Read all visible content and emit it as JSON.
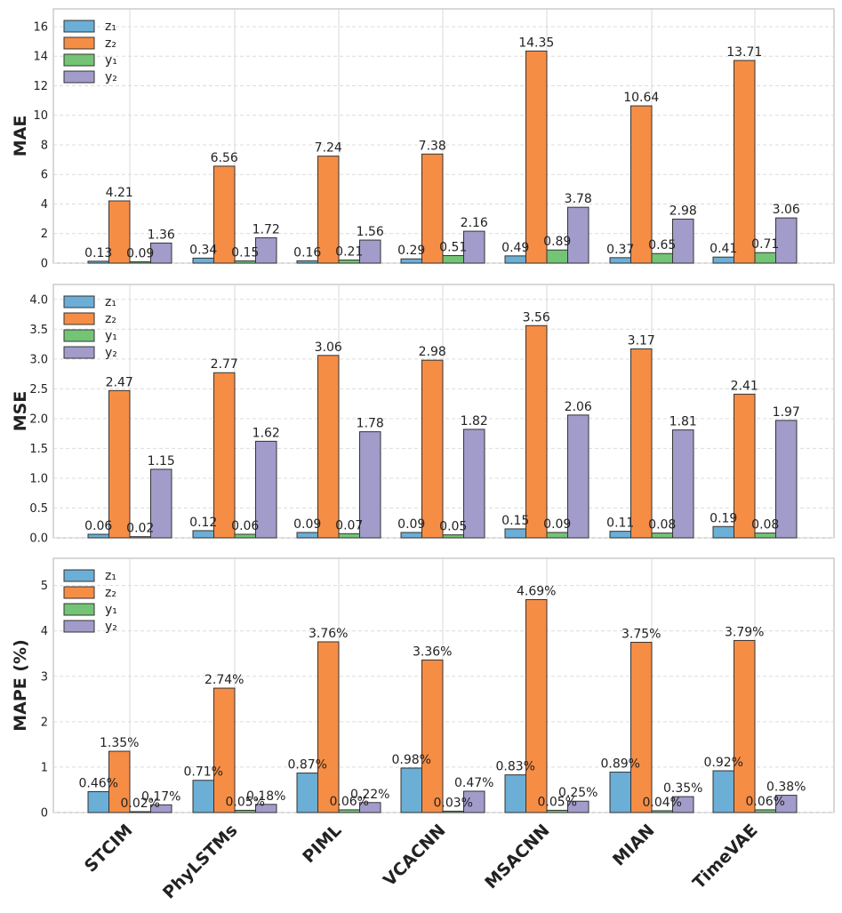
{
  "chart_data": {
    "type": "bar",
    "categories": [
      "STCIM",
      "PhyLSTMs",
      "PIML",
      "VCACNN",
      "MSACNN",
      "MIAN",
      "TimeVAE"
    ],
    "series_colors": [
      "#6baed6",
      "#f68d45",
      "#74c476",
      "#a29ccb"
    ],
    "panels": [
      {
        "ylabel": "MAE",
        "ylim": [
          0,
          17.2
        ],
        "yticks": [
          "0",
          "2",
          "4",
          "6",
          "8",
          "10",
          "12",
          "14",
          "16"
        ],
        "ytick_values": [
          0,
          2,
          4,
          6,
          8,
          10,
          12,
          14,
          16
        ],
        "legend": [
          "z₁",
          "z₂",
          "y₁",
          "y₂"
        ],
        "series": [
          {
            "name": "z₁",
            "values": [
              0.13,
              0.34,
              0.16,
              0.29,
              0.49,
              0.37,
              0.41
            ],
            "labels": [
              "0.13",
              "0.34",
              "0.16",
              "0.29",
              "0.49",
              "0.37",
              "0.41"
            ]
          },
          {
            "name": "z₂",
            "values": [
              4.21,
              6.56,
              7.24,
              7.38,
              14.35,
              10.64,
              13.71
            ],
            "labels": [
              "4.21",
              "6.56",
              "7.24",
              "7.38",
              "14.35",
              "10.64",
              "13.71"
            ]
          },
          {
            "name": "y₁",
            "values": [
              0.09,
              0.15,
              0.21,
              0.51,
              0.89,
              0.65,
              0.71
            ],
            "labels": [
              "0.09",
              "0.15",
              "0.21",
              "0.51",
              "0.89",
              "0.65",
              "0.71"
            ]
          },
          {
            "name": "y₂",
            "values": [
              1.36,
              1.72,
              1.56,
              2.16,
              3.78,
              2.98,
              3.06
            ],
            "labels": [
              "1.36",
              "1.72",
              "1.56",
              "2.16",
              "3.78",
              "2.98",
              "3.06"
            ]
          }
        ]
      },
      {
        "ylabel": "MSE",
        "ylim": [
          0,
          4.25
        ],
        "yticks": [
          "0.0",
          "0.5",
          "1.0",
          "1.5",
          "2.0",
          "2.5",
          "3.0",
          "3.5",
          "4.0"
        ],
        "ytick_values": [
          0,
          0.5,
          1,
          1.5,
          2,
          2.5,
          3,
          3.5,
          4
        ],
        "legend": [
          "z₁",
          "z₂",
          "y₁",
          "y₂"
        ],
        "series": [
          {
            "name": "z₁",
            "values": [
              0.06,
              0.12,
              0.09,
              0.09,
              0.15,
              0.11,
              0.19
            ],
            "labels": [
              "0.06",
              "0.12",
              "0.09",
              "0.09",
              "0.15",
              "0.11",
              "0.19"
            ]
          },
          {
            "name": "z₂",
            "values": [
              2.47,
              2.77,
              3.06,
              2.98,
              3.56,
              3.17,
              2.41
            ],
            "labels": [
              "2.47",
              "2.77",
              "3.06",
              "2.98",
              "3.56",
              "3.17",
              "2.41"
            ]
          },
          {
            "name": "y₁",
            "values": [
              0.02,
              0.06,
              0.07,
              0.05,
              0.09,
              0.08,
              0.08
            ],
            "labels": [
              "0.02",
              "0.06",
              "0.07",
              "0.05",
              "0.09",
              "0.08",
              "0.08"
            ]
          },
          {
            "name": "y₂",
            "values": [
              1.15,
              1.62,
              1.78,
              1.82,
              2.06,
              1.81,
              1.97
            ],
            "labels": [
              "1.15",
              "1.62",
              "1.78",
              "1.82",
              "2.06",
              "1.81",
              "1.97"
            ]
          }
        ]
      },
      {
        "ylabel": "MAPE (%)",
        "ylim": [
          0,
          5.6
        ],
        "yticks": [
          "0",
          "1",
          "2",
          "3",
          "4",
          "5"
        ],
        "ytick_values": [
          0,
          1,
          2,
          3,
          4,
          5
        ],
        "legend": [
          "z₁",
          "z₂",
          "y₁",
          "y₂"
        ],
        "series": [
          {
            "name": "z₁",
            "values": [
              0.46,
              0.71,
              0.87,
              0.98,
              0.83,
              0.89,
              0.92
            ],
            "labels": [
              "0.46%",
              "0.71%",
              "0.87%",
              "0.98%",
              "0.83%",
              "0.89%",
              "0.92%"
            ]
          },
          {
            "name": "z₂",
            "values": [
              1.35,
              2.74,
              3.76,
              3.36,
              4.69,
              3.75,
              3.79
            ],
            "labels": [
              "1.35%",
              "2.74%",
              "3.76%",
              "3.36%",
              "4.69%",
              "3.75%",
              "3.79%"
            ]
          },
          {
            "name": "y₁",
            "values": [
              0.02,
              0.05,
              0.06,
              0.03,
              0.05,
              0.04,
              0.06
            ],
            "labels": [
              "0.02%",
              "0.05%",
              "0.06%",
              "0.03%",
              "0.05%",
              "0.04%",
              "0.06%"
            ]
          },
          {
            "name": "y₂",
            "values": [
              0.17,
              0.18,
              0.22,
              0.47,
              0.25,
              0.35,
              0.38
            ],
            "labels": [
              "0.17%",
              "0.18%",
              "0.22%",
              "0.47%",
              "0.25%",
              "0.35%",
              "0.38%"
            ]
          }
        ]
      }
    ]
  }
}
